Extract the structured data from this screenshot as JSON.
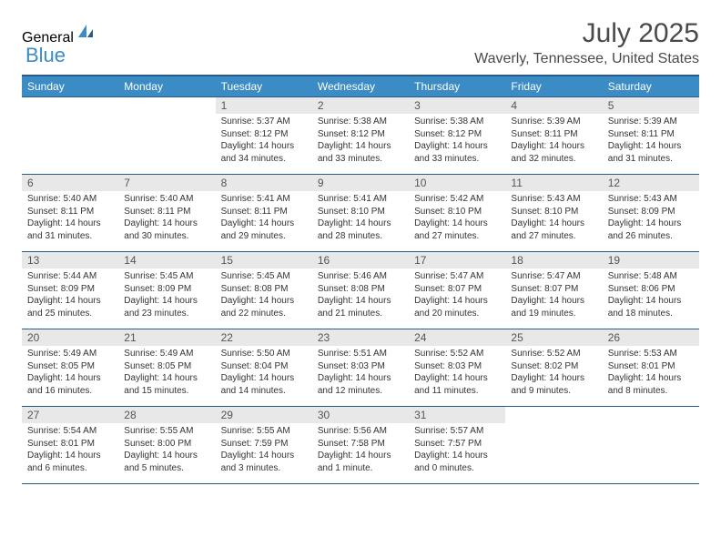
{
  "logo": {
    "part1": "General",
    "part2": "Blue"
  },
  "title": "July 2025",
  "location": "Waverly, Tennessee, United States",
  "colors": {
    "header_bg": "#3b8bc4",
    "header_text": "#ffffff",
    "divider": "#2a5a8a",
    "daynum_bg": "#e8e8e8",
    "body_text": "#333333",
    "logo_gray": "#5a5a5a",
    "logo_blue": "#3b8bc4"
  },
  "weekdays": [
    "Sunday",
    "Monday",
    "Tuesday",
    "Wednesday",
    "Thursday",
    "Friday",
    "Saturday"
  ],
  "days": {
    "1": {
      "sunrise": "5:37 AM",
      "sunset": "8:12 PM",
      "daylight": "14 hours and 34 minutes."
    },
    "2": {
      "sunrise": "5:38 AM",
      "sunset": "8:12 PM",
      "daylight": "14 hours and 33 minutes."
    },
    "3": {
      "sunrise": "5:38 AM",
      "sunset": "8:12 PM",
      "daylight": "14 hours and 33 minutes."
    },
    "4": {
      "sunrise": "5:39 AM",
      "sunset": "8:11 PM",
      "daylight": "14 hours and 32 minutes."
    },
    "5": {
      "sunrise": "5:39 AM",
      "sunset": "8:11 PM",
      "daylight": "14 hours and 31 minutes."
    },
    "6": {
      "sunrise": "5:40 AM",
      "sunset": "8:11 PM",
      "daylight": "14 hours and 31 minutes."
    },
    "7": {
      "sunrise": "5:40 AM",
      "sunset": "8:11 PM",
      "daylight": "14 hours and 30 minutes."
    },
    "8": {
      "sunrise": "5:41 AM",
      "sunset": "8:11 PM",
      "daylight": "14 hours and 29 minutes."
    },
    "9": {
      "sunrise": "5:41 AM",
      "sunset": "8:10 PM",
      "daylight": "14 hours and 28 minutes."
    },
    "10": {
      "sunrise": "5:42 AM",
      "sunset": "8:10 PM",
      "daylight": "14 hours and 27 minutes."
    },
    "11": {
      "sunrise": "5:43 AM",
      "sunset": "8:10 PM",
      "daylight": "14 hours and 27 minutes."
    },
    "12": {
      "sunrise": "5:43 AM",
      "sunset": "8:09 PM",
      "daylight": "14 hours and 26 minutes."
    },
    "13": {
      "sunrise": "5:44 AM",
      "sunset": "8:09 PM",
      "daylight": "14 hours and 25 minutes."
    },
    "14": {
      "sunrise": "5:45 AM",
      "sunset": "8:09 PM",
      "daylight": "14 hours and 23 minutes."
    },
    "15": {
      "sunrise": "5:45 AM",
      "sunset": "8:08 PM",
      "daylight": "14 hours and 22 minutes."
    },
    "16": {
      "sunrise": "5:46 AM",
      "sunset": "8:08 PM",
      "daylight": "14 hours and 21 minutes."
    },
    "17": {
      "sunrise": "5:47 AM",
      "sunset": "8:07 PM",
      "daylight": "14 hours and 20 minutes."
    },
    "18": {
      "sunrise": "5:47 AM",
      "sunset": "8:07 PM",
      "daylight": "14 hours and 19 minutes."
    },
    "19": {
      "sunrise": "5:48 AM",
      "sunset": "8:06 PM",
      "daylight": "14 hours and 18 minutes."
    },
    "20": {
      "sunrise": "5:49 AM",
      "sunset": "8:05 PM",
      "daylight": "14 hours and 16 minutes."
    },
    "21": {
      "sunrise": "5:49 AM",
      "sunset": "8:05 PM",
      "daylight": "14 hours and 15 minutes."
    },
    "22": {
      "sunrise": "5:50 AM",
      "sunset": "8:04 PM",
      "daylight": "14 hours and 14 minutes."
    },
    "23": {
      "sunrise": "5:51 AM",
      "sunset": "8:03 PM",
      "daylight": "14 hours and 12 minutes."
    },
    "24": {
      "sunrise": "5:52 AM",
      "sunset": "8:03 PM",
      "daylight": "14 hours and 11 minutes."
    },
    "25": {
      "sunrise": "5:52 AM",
      "sunset": "8:02 PM",
      "daylight": "14 hours and 9 minutes."
    },
    "26": {
      "sunrise": "5:53 AM",
      "sunset": "8:01 PM",
      "daylight": "14 hours and 8 minutes."
    },
    "27": {
      "sunrise": "5:54 AM",
      "sunset": "8:01 PM",
      "daylight": "14 hours and 6 minutes."
    },
    "28": {
      "sunrise": "5:55 AM",
      "sunset": "8:00 PM",
      "daylight": "14 hours and 5 minutes."
    },
    "29": {
      "sunrise": "5:55 AM",
      "sunset": "7:59 PM",
      "daylight": "14 hours and 3 minutes."
    },
    "30": {
      "sunrise": "5:56 AM",
      "sunset": "7:58 PM",
      "daylight": "14 hours and 1 minute."
    },
    "31": {
      "sunrise": "5:57 AM",
      "sunset": "7:57 PM",
      "daylight": "14 hours and 0 minutes."
    }
  },
  "grid": [
    [
      null,
      null,
      "1",
      "2",
      "3",
      "4",
      "5"
    ],
    [
      "6",
      "7",
      "8",
      "9",
      "10",
      "11",
      "12"
    ],
    [
      "13",
      "14",
      "15",
      "16",
      "17",
      "18",
      "19"
    ],
    [
      "20",
      "21",
      "22",
      "23",
      "24",
      "25",
      "26"
    ],
    [
      "27",
      "28",
      "29",
      "30",
      "31",
      null,
      null
    ]
  ],
  "labels": {
    "sunrise": "Sunrise:",
    "sunset": "Sunset:",
    "daylight": "Daylight:"
  }
}
